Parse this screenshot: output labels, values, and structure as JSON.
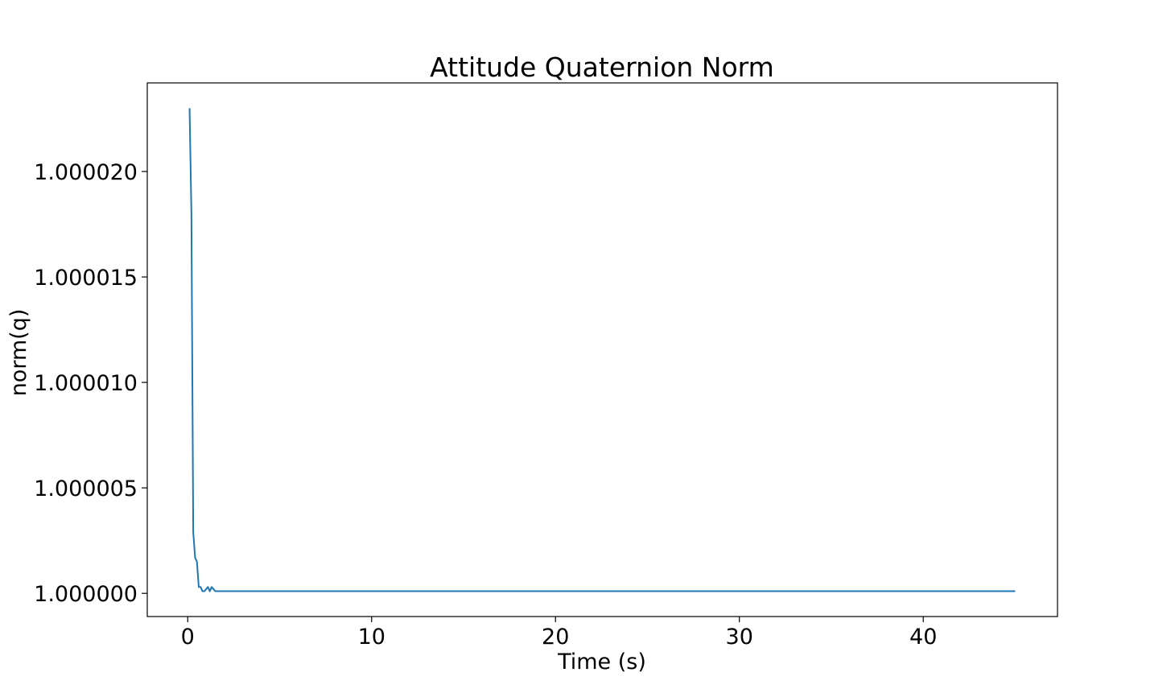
{
  "chart_data": {
    "type": "line",
    "title": "Attitude Quaternion Norm",
    "xlabel": "Time (s)",
    "ylabel": "norm(q)",
    "xlim": [
      -2.2,
      47.3
    ],
    "ylim": [
      0.9999989,
      1.0000242
    ],
    "x_ticks": [
      0,
      10,
      20,
      30,
      40
    ],
    "x_tick_labels": [
      "0",
      "10",
      "20",
      "30",
      "40"
    ],
    "y_ticks": [
      1.0,
      1.000005,
      1.00001,
      1.000015,
      1.00002
    ],
    "y_tick_labels": [
      "1.000000",
      "1.000005",
      "1.000010",
      "1.000015",
      "1.000020"
    ],
    "grid": false,
    "legend": "none",
    "series": [
      {
        "color": "#1f77b4",
        "x": [
          0.1,
          0.2,
          0.3,
          0.4,
          0.5,
          0.6,
          0.7,
          0.8,
          0.9,
          1.0,
          1.1,
          1.2,
          1.3,
          1.4,
          1.5,
          1.6,
          1.7,
          1.8,
          2.0,
          2.2,
          2.4,
          2.5,
          2.6,
          2.8,
          3.0,
          3.2,
          3.5,
          4.0,
          4.5,
          5.0,
          6.0,
          7.0,
          8.0,
          9.0,
          10.0,
          11.0,
          12.0,
          15.0,
          20.0,
          25.0,
          30.0,
          35.0,
          40.0,
          45.0
        ],
        "y": [
          1.000023,
          1.000018,
          1.0000029,
          1.0000017,
          1.0000015,
          1.0000003,
          1.0000003,
          1.0000001,
          1.0000001,
          1.0000002,
          1.0000003,
          1.0000001,
          1.0000003,
          1.0000002,
          1.0000001,
          1.0000001,
          1.0000001,
          1.0000001,
          1.0000001,
          1.0000001,
          1.0000001,
          1.0000001,
          1.0000001,
          1.0000001,
          1.0000001,
          1.0000001,
          1.0000001,
          1.0000001,
          1.0000001,
          1.0000001,
          1.0000001,
          1.0000001,
          1.0000001,
          1.0000001,
          1.0000001,
          1.0000001,
          1.0000001,
          1.0000001,
          1.0000001,
          1.0000001,
          1.0000001,
          1.0000001,
          1.0000001,
          1.0000001
        ]
      }
    ]
  }
}
